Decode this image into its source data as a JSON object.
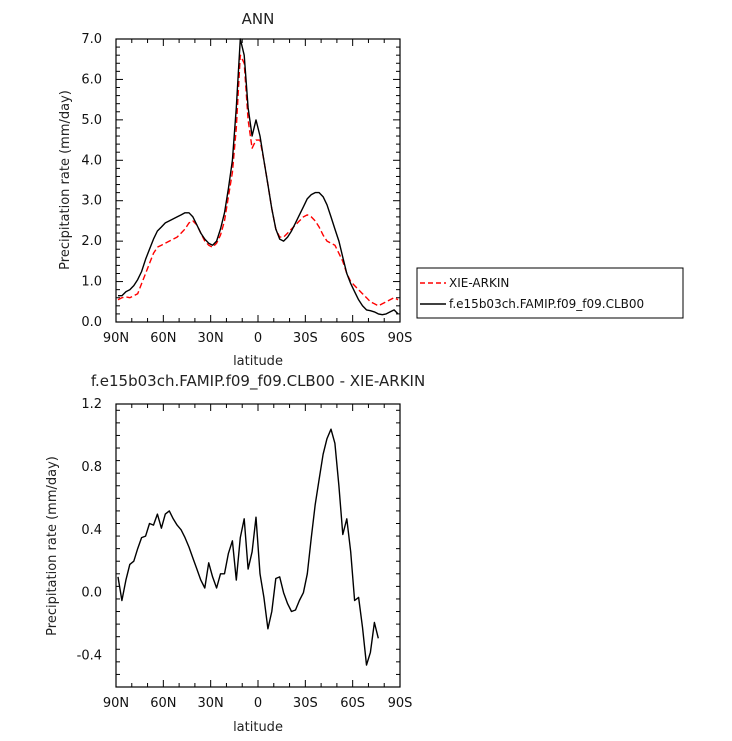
{
  "chart_data": [
    {
      "type": "line",
      "title": "ANN",
      "xlabel": "latitude",
      "ylabel": "Precipitation rate (mm/day)",
      "xlim": [
        -90,
        90
      ],
      "ylim": [
        0,
        7
      ],
      "x_ticks": [
        {
          "value": -90,
          "label": "90N"
        },
        {
          "value": -60,
          "label": "60N"
        },
        {
          "value": -30,
          "label": "30N"
        },
        {
          "value": 0,
          "label": "0"
        },
        {
          "value": 30,
          "label": "30S"
        },
        {
          "value": 60,
          "label": "60S"
        },
        {
          "value": 90,
          "label": "90S"
        }
      ],
      "y_ticks": [
        {
          "value": 0,
          "label": "0.0"
        },
        {
          "value": 1,
          "label": "1.0"
        },
        {
          "value": 2,
          "label": "2.0"
        },
        {
          "value": 3,
          "label": "3.0"
        },
        {
          "value": 4,
          "label": "4.0"
        },
        {
          "value": 5,
          "label": "5.0"
        },
        {
          "value": 6,
          "label": "6.0"
        },
        {
          "value": 7,
          "label": "7.0"
        }
      ],
      "legend_position": "right",
      "series": [
        {
          "name": "XIE-ARKIN",
          "color": "#ff0000",
          "style": "dashed",
          "points": [
            [
              -88.75,
              0.55
            ],
            [
              -86.25,
              0.6
            ],
            [
              -83.75,
              0.62
            ],
            [
              -81.25,
              0.6
            ],
            [
              -78.75,
              0.65
            ],
            [
              -76.25,
              0.7
            ],
            [
              -73.75,
              0.95
            ],
            [
              -71.25,
              1.2
            ],
            [
              -68.75,
              1.45
            ],
            [
              -66.25,
              1.7
            ],
            [
              -63.75,
              1.85
            ],
            [
              -61.25,
              1.9
            ],
            [
              -58.75,
              1.95
            ],
            [
              -56.25,
              2.0
            ],
            [
              -53.75,
              2.05
            ],
            [
              -51.25,
              2.1
            ],
            [
              -48.75,
              2.2
            ],
            [
              -46.25,
              2.3
            ],
            [
              -43.75,
              2.45
            ],
            [
              -41.25,
              2.5
            ],
            [
              -38.75,
              2.4
            ],
            [
              -36.25,
              2.2
            ],
            [
              -33.75,
              2.0
            ],
            [
              -31.25,
              1.9
            ],
            [
              -28.75,
              1.85
            ],
            [
              -26.25,
              1.95
            ],
            [
              -23.75,
              2.15
            ],
            [
              -21.25,
              2.5
            ],
            [
              -18.75,
              3.1
            ],
            [
              -16.25,
              3.7
            ],
            [
              -13.75,
              4.8
            ],
            [
              -11.25,
              6.6
            ],
            [
              -8.75,
              6.4
            ],
            [
              -6.25,
              5.0
            ],
            [
              -3.75,
              4.3
            ],
            [
              -1.25,
              4.5
            ],
            [
              1.25,
              4.5
            ],
            [
              3.75,
              4.0
            ],
            [
              6.25,
              3.4
            ],
            [
              8.75,
              2.8
            ],
            [
              11.25,
              2.3
            ],
            [
              13.75,
              2.1
            ],
            [
              16.25,
              2.1
            ],
            [
              18.75,
              2.2
            ],
            [
              21.25,
              2.3
            ],
            [
              23.75,
              2.4
            ],
            [
              26.25,
              2.5
            ],
            [
              28.75,
              2.6
            ],
            [
              31.25,
              2.65
            ],
            [
              33.75,
              2.6
            ],
            [
              36.25,
              2.5
            ],
            [
              38.75,
              2.35
            ],
            [
              41.25,
              2.15
            ],
            [
              43.75,
              2.0
            ],
            [
              46.25,
              1.95
            ],
            [
              48.75,
              1.9
            ],
            [
              51.25,
              1.7
            ],
            [
              53.75,
              1.5
            ],
            [
              56.25,
              1.2
            ],
            [
              58.75,
              1.0
            ],
            [
              61.25,
              0.9
            ],
            [
              63.75,
              0.8
            ],
            [
              66.25,
              0.7
            ],
            [
              68.75,
              0.6
            ],
            [
              71.25,
              0.5
            ],
            [
              73.75,
              0.45
            ],
            [
              76.25,
              0.4
            ],
            [
              78.75,
              0.45
            ],
            [
              81.25,
              0.5
            ],
            [
              83.75,
              0.55
            ],
            [
              86.25,
              0.6
            ],
            [
              88.75,
              0.55
            ]
          ]
        },
        {
          "name": "f.e15b03ch.FAMIP.f09_f09.CLB00",
          "color": "#000000",
          "style": "solid",
          "points": [
            [
              -88.75,
              0.65
            ],
            [
              -86.25,
              0.65
            ],
            [
              -83.75,
              0.75
            ],
            [
              -81.25,
              0.8
            ],
            [
              -78.75,
              0.9
            ],
            [
              -76.25,
              1.05
            ],
            [
              -73.75,
              1.25
            ],
            [
              -71.25,
              1.55
            ],
            [
              -68.75,
              1.8
            ],
            [
              -66.25,
              2.05
            ],
            [
              -63.75,
              2.25
            ],
            [
              -61.25,
              2.35
            ],
            [
              -58.75,
              2.45
            ],
            [
              -56.25,
              2.5
            ],
            [
              -53.75,
              2.55
            ],
            [
              -51.25,
              2.6
            ],
            [
              -48.75,
              2.65
            ],
            [
              -46.25,
              2.7
            ],
            [
              -43.75,
              2.7
            ],
            [
              -41.25,
              2.6
            ],
            [
              -38.75,
              2.4
            ],
            [
              -36.25,
              2.2
            ],
            [
              -33.75,
              2.05
            ],
            [
              -31.25,
              1.95
            ],
            [
              -28.75,
              1.9
            ],
            [
              -26.25,
              2.0
            ],
            [
              -23.75,
              2.3
            ],
            [
              -21.25,
              2.7
            ],
            [
              -18.75,
              3.3
            ],
            [
              -16.25,
              4.0
            ],
            [
              -13.75,
              5.3
            ],
            [
              -11.25,
              7.0
            ],
            [
              -8.75,
              6.6
            ],
            [
              -6.25,
              5.3
            ],
            [
              -3.75,
              4.6
            ],
            [
              -1.25,
              5.0
            ],
            [
              1.25,
              4.6
            ],
            [
              3.75,
              4.0
            ],
            [
              6.25,
              3.4
            ],
            [
              8.75,
              2.8
            ],
            [
              11.25,
              2.3
            ],
            [
              13.75,
              2.05
            ],
            [
              16.25,
              2.0
            ],
            [
              18.75,
              2.1
            ],
            [
              21.25,
              2.25
            ],
            [
              23.75,
              2.45
            ],
            [
              26.25,
              2.65
            ],
            [
              28.75,
              2.85
            ],
            [
              31.25,
              3.05
            ],
            [
              33.75,
              3.15
            ],
            [
              36.25,
              3.2
            ],
            [
              38.75,
              3.2
            ],
            [
              41.25,
              3.1
            ],
            [
              43.75,
              2.9
            ],
            [
              46.25,
              2.6
            ],
            [
              48.75,
              2.3
            ],
            [
              51.25,
              2.0
            ],
            [
              53.75,
              1.6
            ],
            [
              56.25,
              1.2
            ],
            [
              58.75,
              0.95
            ],
            [
              61.25,
              0.75
            ],
            [
              63.75,
              0.55
            ],
            [
              66.25,
              0.4
            ],
            [
              68.75,
              0.3
            ],
            [
              71.25,
              0.28
            ],
            [
              73.75,
              0.25
            ],
            [
              76.25,
              0.2
            ],
            [
              78.75,
              0.18
            ],
            [
              81.25,
              0.2
            ],
            [
              83.75,
              0.25
            ],
            [
              86.25,
              0.3
            ],
            [
              88.75,
              0.2
            ]
          ]
        }
      ]
    },
    {
      "type": "line",
      "title": "f.e15b03ch.FAMIP.f09_f09.CLB00 - XIE-ARKIN",
      "xlabel": "latitude",
      "ylabel": "Precipitation rate (mm/day)",
      "xlim": [
        -90,
        90
      ],
      "ylim": [
        -0.6,
        1.2
      ],
      "x_ticks": [
        {
          "value": -90,
          "label": "90N"
        },
        {
          "value": -60,
          "label": "60N"
        },
        {
          "value": -30,
          "label": "30N"
        },
        {
          "value": 0,
          "label": "0"
        },
        {
          "value": 30,
          "label": "30S"
        },
        {
          "value": 60,
          "label": "60S"
        },
        {
          "value": 90,
          "label": "90S"
        }
      ],
      "y_ticks": [
        {
          "value": -0.4,
          "label": "-0.4"
        },
        {
          "value": 0.0,
          "label": "0.0"
        },
        {
          "value": 0.4,
          "label": "0.4"
        },
        {
          "value": 0.8,
          "label": "0.8"
        },
        {
          "value": 1.2,
          "label": "1.2"
        }
      ],
      "series": [
        {
          "name": "",
          "color": "#000000",
          "style": "solid",
          "points": [
            [
              -88.75,
              0.1
            ],
            [
              -86.25,
              -0.05
            ],
            [
              -83.75,
              0.08
            ],
            [
              -81.25,
              0.18
            ],
            [
              -78.75,
              0.2
            ],
            [
              -76.25,
              0.28
            ],
            [
              -73.75,
              0.35
            ],
            [
              -71.25,
              0.36
            ],
            [
              -68.75,
              0.44
            ],
            [
              -66.25,
              0.43
            ],
            [
              -63.75,
              0.5
            ],
            [
              -61.25,
              0.41
            ],
            [
              -58.75,
              0.5
            ],
            [
              -56.25,
              0.52
            ],
            [
              -53.75,
              0.47
            ],
            [
              -51.25,
              0.43
            ],
            [
              -48.75,
              0.4
            ],
            [
              -46.25,
              0.35
            ],
            [
              -43.75,
              0.29
            ],
            [
              -41.25,
              0.22
            ],
            [
              -38.75,
              0.15
            ],
            [
              -36.25,
              0.08
            ],
            [
              -33.75,
              0.03
            ],
            [
              -31.25,
              0.19
            ],
            [
              -28.75,
              0.1
            ],
            [
              -26.25,
              0.03
            ],
            [
              -23.75,
              0.12
            ],
            [
              -21.25,
              0.12
            ],
            [
              -18.75,
              0.25
            ],
            [
              -16.25,
              0.33
            ],
            [
              -13.75,
              0.08
            ],
            [
              -11.25,
              0.35
            ],
            [
              -8.75,
              0.47
            ],
            [
              -6.25,
              0.15
            ],
            [
              -3.75,
              0.26
            ],
            [
              -1.25,
              0.48
            ],
            [
              1.25,
              0.12
            ],
            [
              3.75,
              -0.03
            ],
            [
              6.25,
              -0.23
            ],
            [
              8.75,
              -0.12
            ],
            [
              11.25,
              0.09
            ],
            [
              13.75,
              0.1
            ],
            [
              16.25,
              0.0
            ],
            [
              18.75,
              -0.07
            ],
            [
              21.25,
              -0.12
            ],
            [
              23.75,
              -0.11
            ],
            [
              26.25,
              -0.05
            ],
            [
              28.75,
              0.0
            ],
            [
              31.25,
              0.12
            ],
            [
              33.75,
              0.35
            ],
            [
              36.25,
              0.56
            ],
            [
              38.75,
              0.72
            ],
            [
              41.25,
              0.88
            ],
            [
              43.75,
              0.98
            ],
            [
              46.25,
              1.04
            ],
            [
              48.75,
              0.95
            ],
            [
              51.25,
              0.68
            ],
            [
              53.75,
              0.37
            ],
            [
              56.25,
              0.47
            ],
            [
              58.75,
              0.26
            ],
            [
              61.25,
              -0.05
            ],
            [
              63.75,
              -0.03
            ],
            [
              66.25,
              -0.22
            ],
            [
              68.75,
              -0.46
            ],
            [
              71.25,
              -0.38
            ],
            [
              73.75,
              -0.19
            ],
            [
              76.25,
              -0.29
            ]
          ]
        }
      ]
    }
  ]
}
